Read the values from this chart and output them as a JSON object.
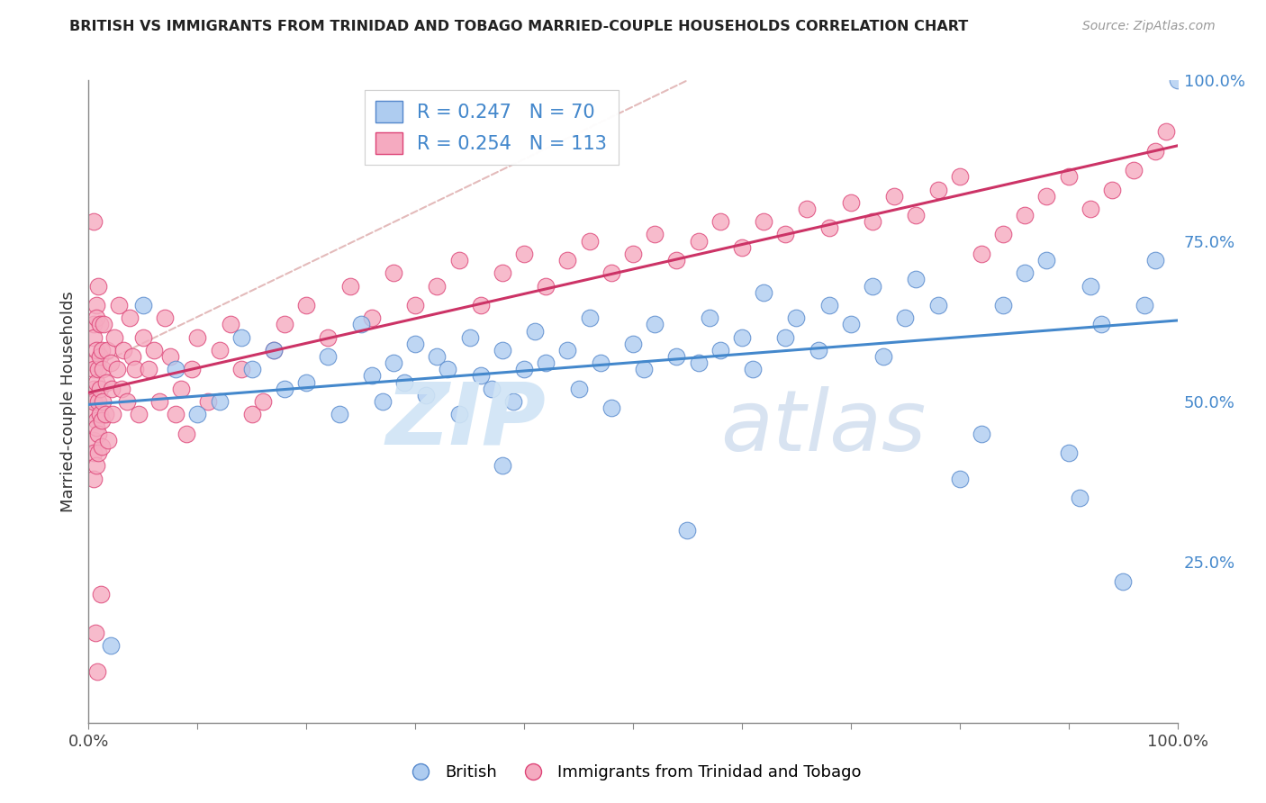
{
  "title": "BRITISH VS IMMIGRANTS FROM TRINIDAD AND TOBAGO MARRIED-COUPLE HOUSEHOLDS CORRELATION CHART",
  "source": "Source: ZipAtlas.com",
  "ylabel": "Married-couple Households",
  "xlim": [
    0.0,
    1.0
  ],
  "ylim": [
    0.0,
    1.0
  ],
  "xtick_positions": [
    0.0,
    0.1,
    0.2,
    0.3,
    0.4,
    0.5,
    0.6,
    0.7,
    0.8,
    0.9,
    1.0
  ],
  "xtick_labels_show": {
    "0.0": "0.0%",
    "1.0": "100.0%"
  },
  "ytick_positions_right": [
    0.25,
    0.5,
    0.75,
    1.0
  ],
  "ytick_labels_right": [
    "25.0%",
    "50.0%",
    "75.0%",
    "100.0%"
  ],
  "british_color": "#aeccf0",
  "british_edge_color": "#5588cc",
  "tt_color": "#f5aac0",
  "tt_edge_color": "#dd4477",
  "british_R": 0.247,
  "british_N": 70,
  "tt_R": 0.254,
  "tt_N": 113,
  "legend_british_label": "British",
  "legend_tt_label": "Immigrants from Trinidad and Tobago",
  "watermark_zip": "ZIP",
  "watermark_atlas": "atlas",
  "background_color": "#ffffff",
  "grid_color": "#dddddd",
  "trend_british_color": "#4488cc",
  "trend_tt_color": "#cc3366",
  "ref_line_color": "#ddaaaa",
  "title_fontsize": 11.5,
  "source_fontsize": 10,
  "british_x": [
    0.02,
    0.05,
    0.08,
    0.1,
    0.12,
    0.14,
    0.15,
    0.17,
    0.18,
    0.2,
    0.22,
    0.23,
    0.25,
    0.26,
    0.27,
    0.28,
    0.29,
    0.3,
    0.31,
    0.32,
    0.33,
    0.34,
    0.35,
    0.36,
    0.37,
    0.38,
    0.39,
    0.4,
    0.41,
    0.42,
    0.44,
    0.45,
    0.46,
    0.47,
    0.48,
    0.5,
    0.51,
    0.52,
    0.54,
    0.56,
    0.57,
    0.58,
    0.6,
    0.61,
    0.62,
    0.64,
    0.65,
    0.67,
    0.68,
    0.7,
    0.72,
    0.73,
    0.75,
    0.76,
    0.78,
    0.8,
    0.82,
    0.84,
    0.86,
    0.88,
    0.9,
    0.91,
    0.92,
    0.93,
    0.95,
    0.97,
    0.98,
    1.0,
    0.38,
    0.55
  ],
  "british_y": [
    0.12,
    0.65,
    0.55,
    0.48,
    0.5,
    0.6,
    0.55,
    0.58,
    0.52,
    0.53,
    0.57,
    0.48,
    0.62,
    0.54,
    0.5,
    0.56,
    0.53,
    0.59,
    0.51,
    0.57,
    0.55,
    0.48,
    0.6,
    0.54,
    0.52,
    0.58,
    0.5,
    0.55,
    0.61,
    0.56,
    0.58,
    0.52,
    0.63,
    0.56,
    0.49,
    0.59,
    0.55,
    0.62,
    0.57,
    0.56,
    0.63,
    0.58,
    0.6,
    0.55,
    0.67,
    0.6,
    0.63,
    0.58,
    0.65,
    0.62,
    0.68,
    0.57,
    0.63,
    0.69,
    0.65,
    0.38,
    0.45,
    0.65,
    0.7,
    0.72,
    0.42,
    0.35,
    0.68,
    0.62,
    0.22,
    0.65,
    0.72,
    1.0,
    0.4,
    0.3
  ],
  "tt_x": [
    0.005,
    0.005,
    0.005,
    0.005,
    0.005,
    0.005,
    0.005,
    0.005,
    0.005,
    0.005,
    0.007,
    0.007,
    0.007,
    0.007,
    0.007,
    0.007,
    0.007,
    0.009,
    0.009,
    0.009,
    0.009,
    0.009,
    0.01,
    0.01,
    0.01,
    0.01,
    0.012,
    0.012,
    0.012,
    0.013,
    0.013,
    0.014,
    0.015,
    0.016,
    0.017,
    0.018,
    0.02,
    0.021,
    0.022,
    0.024,
    0.026,
    0.028,
    0.03,
    0.032,
    0.035,
    0.038,
    0.04,
    0.043,
    0.046,
    0.05,
    0.055,
    0.06,
    0.065,
    0.07,
    0.075,
    0.08,
    0.085,
    0.09,
    0.095,
    0.1,
    0.11,
    0.12,
    0.13,
    0.14,
    0.15,
    0.16,
    0.17,
    0.18,
    0.2,
    0.22,
    0.24,
    0.26,
    0.28,
    0.3,
    0.32,
    0.34,
    0.36,
    0.38,
    0.4,
    0.42,
    0.44,
    0.46,
    0.48,
    0.5,
    0.52,
    0.54,
    0.56,
    0.58,
    0.6,
    0.62,
    0.64,
    0.66,
    0.68,
    0.7,
    0.72,
    0.74,
    0.76,
    0.78,
    0.8,
    0.82,
    0.84,
    0.86,
    0.88,
    0.9,
    0.92,
    0.94,
    0.96,
    0.98,
    0.99,
    0.005,
    0.008,
    0.006,
    0.011
  ],
  "tt_y": [
    0.48,
    0.52,
    0.56,
    0.44,
    0.62,
    0.38,
    0.5,
    0.55,
    0.42,
    0.6,
    0.65,
    0.47,
    0.53,
    0.4,
    0.58,
    0.63,
    0.46,
    0.55,
    0.5,
    0.45,
    0.68,
    0.42,
    0.57,
    0.52,
    0.48,
    0.62,
    0.43,
    0.58,
    0.47,
    0.55,
    0.5,
    0.62,
    0.48,
    0.53,
    0.58,
    0.44,
    0.56,
    0.52,
    0.48,
    0.6,
    0.55,
    0.65,
    0.52,
    0.58,
    0.5,
    0.63,
    0.57,
    0.55,
    0.48,
    0.6,
    0.55,
    0.58,
    0.5,
    0.63,
    0.57,
    0.48,
    0.52,
    0.45,
    0.55,
    0.6,
    0.5,
    0.58,
    0.62,
    0.55,
    0.48,
    0.5,
    0.58,
    0.62,
    0.65,
    0.6,
    0.68,
    0.63,
    0.7,
    0.65,
    0.68,
    0.72,
    0.65,
    0.7,
    0.73,
    0.68,
    0.72,
    0.75,
    0.7,
    0.73,
    0.76,
    0.72,
    0.75,
    0.78,
    0.74,
    0.78,
    0.76,
    0.8,
    0.77,
    0.81,
    0.78,
    0.82,
    0.79,
    0.83,
    0.85,
    0.73,
    0.76,
    0.79,
    0.82,
    0.85,
    0.8,
    0.83,
    0.86,
    0.89,
    0.92,
    0.78,
    0.08,
    0.14,
    0.2
  ]
}
